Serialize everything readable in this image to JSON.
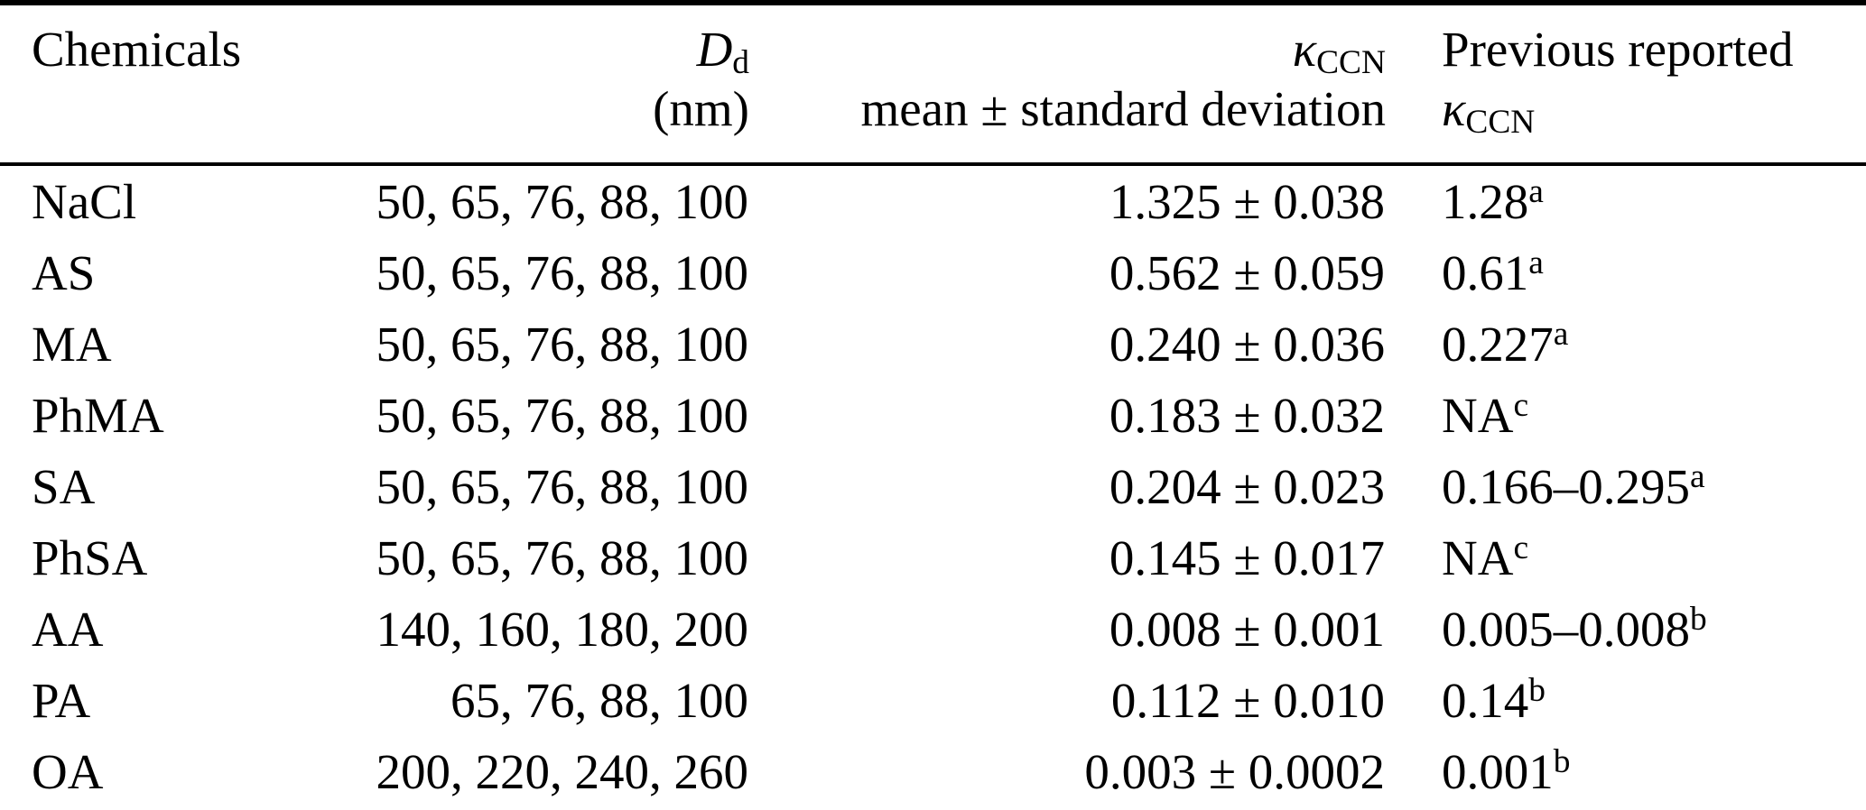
{
  "table": {
    "header": {
      "chemicals": "Chemicals",
      "dd": {
        "symbol": "D",
        "sub": "d",
        "unit": "(nm)"
      },
      "kappa": {
        "symbol": "κ",
        "sub": "CCN",
        "line2": "mean ± standard deviation"
      },
      "previous": {
        "line1": "Previous reported",
        "symbol": "κ",
        "sub": "CCN"
      }
    },
    "rows": [
      {
        "chemical": "NaCl",
        "diameters": "50, 65, 76, 88, 100",
        "kappa": "1.325 ± 0.038",
        "previous": "1.28",
        "note": "a"
      },
      {
        "chemical": "AS",
        "diameters": "50, 65, 76, 88, 100",
        "kappa": "0.562 ± 0.059",
        "previous": "0.61",
        "note": "a"
      },
      {
        "chemical": "MA",
        "diameters": "50, 65, 76, 88, 100",
        "kappa": "0.240 ± 0.036",
        "previous": "0.227",
        "note": "a"
      },
      {
        "chemical": "PhMA",
        "diameters": "50, 65, 76, 88, 100",
        "kappa": "0.183 ± 0.032",
        "previous": "NA",
        "note": "c"
      },
      {
        "chemical": "SA",
        "diameters": "50, 65, 76, 88, 100",
        "kappa": "0.204 ± 0.023",
        "previous": "0.166–0.295",
        "note": "a"
      },
      {
        "chemical": "PhSA",
        "diameters": "50, 65, 76, 88, 100",
        "kappa": "0.145 ± 0.017",
        "previous": "NA",
        "note": "c"
      },
      {
        "chemical": "AA",
        "diameters": "140, 160, 180, 200",
        "kappa": "0.008 ± 0.001",
        "previous": "0.005–0.008",
        "note": "b"
      },
      {
        "chemical": "PA",
        "diameters": "65, 76, 88, 100",
        "kappa": "0.112 ± 0.010",
        "previous": "0.14",
        "note": "b"
      },
      {
        "chemical": "OA",
        "diameters": "200, 220, 240, 260",
        "kappa": "0.003 ± 0.0002",
        "previous": "0.001",
        "note": "b"
      }
    ]
  },
  "colors": {
    "text": "#000000",
    "background": "#ffffff",
    "rule": "#000000"
  }
}
